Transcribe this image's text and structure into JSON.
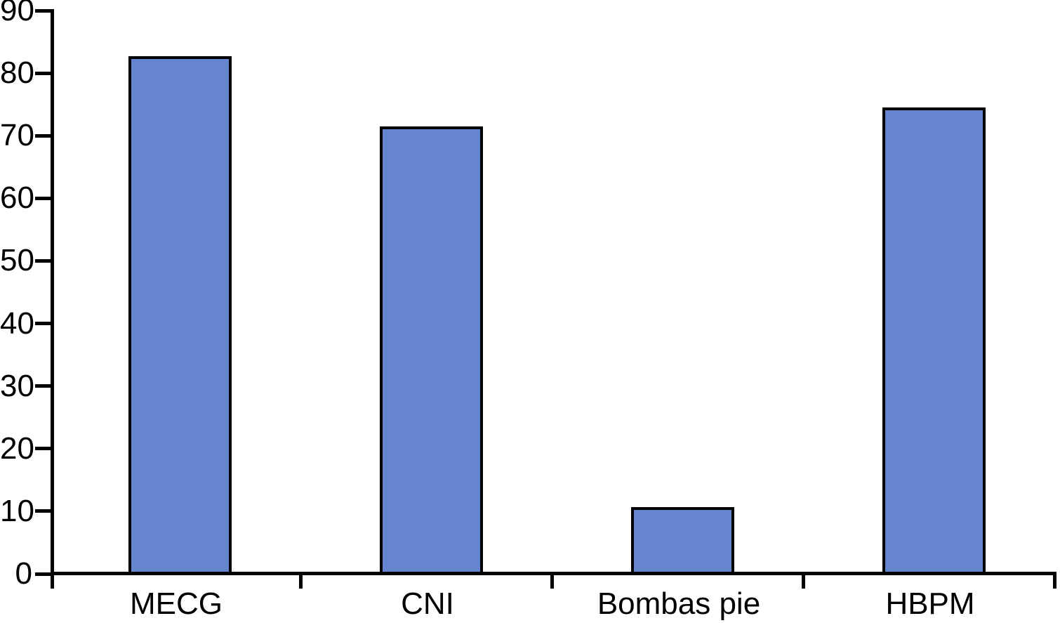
{
  "chart_data": {
    "type": "bar",
    "title": "",
    "xlabel": "",
    "ylabel": "",
    "categories": [
      "MECG",
      "CNI",
      "Bombas pie",
      "HBPM"
    ],
    "values": [
      82.7,
      71.5,
      10.7,
      74.5
    ],
    "ylim": [
      0,
      90
    ],
    "ytick_step": 10,
    "ytick_labels": [
      "0",
      "10",
      "20",
      "30",
      "40",
      "50",
      "60",
      "70",
      "80",
      "90"
    ],
    "grid": false,
    "legend_position": "none",
    "bar_fill_color": "#6585CE",
    "bar_border_color": "#000000",
    "axis_color": "#000000"
  }
}
